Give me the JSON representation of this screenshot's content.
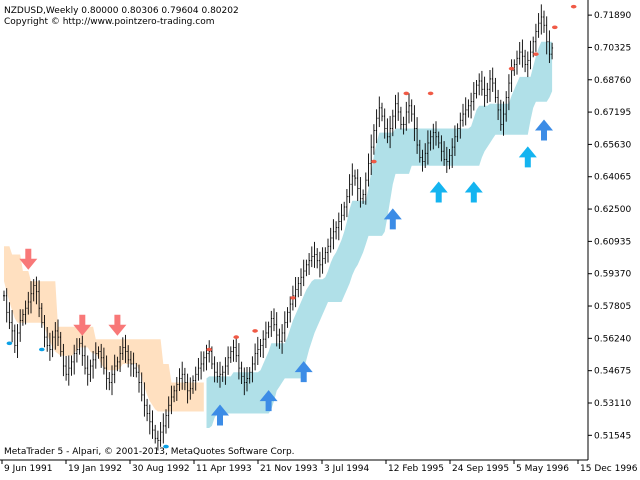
{
  "window": {
    "symbol_line": "NZDUSD,Weekly  0.80000 0.80306 0.79604 0.80202",
    "copyright": "Copyright © http://www.pointzero-trading.com",
    "footer": "MetaTrader 5 - Alpari, © 2001-2013, MetaQuotes Software Corp."
  },
  "colors": {
    "candle": "#000000",
    "bear_band": "#FFE0C0",
    "bull_band": "#B0E0E8",
    "down_arrow": "#F87878",
    "up_arrow_dark": "#3C8CE6",
    "up_arrow_light": "#14B4F0",
    "dot_red": "#F05A46",
    "dot_blue": "#0AA0E6",
    "axis": "#000000"
  },
  "chart_data": {
    "type": "line",
    "title": "",
    "xlabel": "",
    "ylabel": "",
    "ylim": [
      0.5035,
      0.7238
    ],
    "y_ticks": [
      "0.71890",
      "0.70325",
      "0.68760",
      "0.67195",
      "0.65630",
      "0.64065",
      "0.62500",
      "0.60935",
      "0.59370",
      "0.57805",
      "0.56240",
      "0.54675",
      "0.53110",
      "0.51545"
    ],
    "x_ticks": [
      "9 Jun 1991",
      "19 Jan 1992",
      "30 Aug 1992",
      "11 Apr 1993",
      "21 Nov 1993",
      "3 Jul 1994",
      "12 Feb 1995",
      "24 Sep 1995",
      "5 May 1996",
      "15 Dec 1996"
    ],
    "series": [
      {
        "values": [
          0.583,
          0.575,
          0.57,
          0.566,
          0.559,
          0.565,
          0.571,
          0.574,
          0.577,
          0.58,
          0.584,
          0.588,
          0.585,
          0.577,
          0.57,
          0.563,
          0.559,
          0.557,
          0.563,
          0.566,
          0.563,
          0.556,
          0.549,
          0.545,
          0.548,
          0.551,
          0.555,
          0.557,
          0.56,
          0.554,
          0.548,
          0.545,
          0.549,
          0.552,
          0.555,
          0.556,
          0.553,
          0.548,
          0.543,
          0.541,
          0.545,
          0.549,
          0.551,
          0.555,
          0.558,
          0.556,
          0.552,
          0.55,
          0.548,
          0.546,
          0.541,
          0.535,
          0.53,
          0.526,
          0.522,
          0.518,
          0.514,
          0.513,
          0.517,
          0.52,
          0.525,
          0.53,
          0.534,
          0.537,
          0.54,
          0.543,
          0.545,
          0.541,
          0.537,
          0.538,
          0.542,
          0.545,
          0.548,
          0.55,
          0.553,
          0.555,
          0.556,
          0.55,
          0.546,
          0.544,
          0.545,
          0.546,
          0.549,
          0.553,
          0.556,
          0.558,
          0.554,
          0.548,
          0.544,
          0.541,
          0.543,
          0.546,
          0.55,
          0.555,
          0.557,
          0.559,
          0.562,
          0.565,
          0.568,
          0.572,
          0.569,
          0.564,
          0.561,
          0.565,
          0.57,
          0.575,
          0.579,
          0.583,
          0.586,
          0.589,
          0.592,
          0.595,
          0.598,
          0.6,
          0.602,
          0.603,
          0.6,
          0.598,
          0.601,
          0.604,
          0.607,
          0.611,
          0.614,
          0.616,
          0.619,
          0.622,
          0.626,
          0.631,
          0.637,
          0.641,
          0.64,
          0.635,
          0.63,
          0.632,
          0.639,
          0.647,
          0.655,
          0.663,
          0.669,
          0.674,
          0.67,
          0.664,
          0.66,
          0.664,
          0.67,
          0.676,
          0.672,
          0.666,
          0.666,
          0.672,
          0.675,
          0.671,
          0.664,
          0.656,
          0.65,
          0.648,
          0.652,
          0.657,
          0.66,
          0.662,
          0.66,
          0.657,
          0.653,
          0.649,
          0.648,
          0.651,
          0.655,
          0.66,
          0.664,
          0.668,
          0.671,
          0.673,
          0.675,
          0.677,
          0.681,
          0.685,
          0.687,
          0.683,
          0.68,
          0.683,
          0.688,
          0.686,
          0.679,
          0.673,
          0.666,
          0.671,
          0.679,
          0.686,
          0.692,
          0.695,
          0.698,
          0.701,
          0.699,
          0.695,
          0.697,
          0.701,
          0.706,
          0.711,
          0.715,
          0.718,
          0.714,
          0.706,
          0.7,
          0.703
        ]
      }
    ],
    "bands": {
      "bearish": {
        "start": 0,
        "end": 74,
        "top": [
          0.607,
          0.607,
          0.607,
          0.603,
          0.603,
          0.603,
          0.603,
          0.595,
          0.595,
          0.595,
          0.59,
          0.59,
          0.59,
          0.59,
          0.59,
          0.59,
          0.59,
          0.59,
          0.59,
          0.59,
          0.568,
          0.568,
          0.568,
          0.568,
          0.568,
          0.568,
          0.568,
          0.568,
          0.568,
          0.568,
          0.568,
          0.568,
          0.568,
          0.568,
          0.562,
          0.562,
          0.562,
          0.562,
          0.562,
          0.562,
          0.562,
          0.562,
          0.562,
          0.562,
          0.562,
          0.562,
          0.562,
          0.562,
          0.562,
          0.562,
          0.562,
          0.562,
          0.562,
          0.562,
          0.562,
          0.562,
          0.562,
          0.562,
          0.562,
          0.55,
          0.55,
          0.55,
          0.541,
          0.541,
          0.541,
          0.541,
          0.541,
          0.541,
          0.541,
          0.541,
          0.541,
          0.541,
          0.541,
          0.541,
          0.541
        ],
        "bottom": [
          0.59,
          0.585,
          0.58,
          0.576,
          0.572,
          0.57,
          0.57,
          0.57,
          0.57,
          0.57,
          0.57,
          0.57,
          0.57,
          0.57,
          0.57,
          0.568,
          0.564,
          0.561,
          0.558,
          0.556,
          0.555,
          0.554,
          0.554,
          0.554,
          0.554,
          0.554,
          0.555,
          0.557,
          0.558,
          0.558,
          0.558,
          0.558,
          0.556,
          0.555,
          0.555,
          0.553,
          0.55,
          0.548,
          0.547,
          0.547,
          0.547,
          0.547,
          0.547,
          0.548,
          0.55,
          0.55,
          0.55,
          0.55,
          0.55,
          0.55,
          0.547,
          0.543,
          0.539,
          0.535,
          0.532,
          0.53,
          0.528,
          0.527,
          0.527,
          0.527,
          0.527,
          0.527,
          0.527,
          0.527,
          0.527,
          0.527,
          0.527,
          0.527,
          0.527,
          0.527,
          0.527,
          0.527,
          0.527,
          0.527,
          0.527
        ]
      },
      "bullish": {
        "start": 75,
        "end": 204
      }
    },
    "down_arrows": [
      {
        "i": 9,
        "y": 0.6
      },
      {
        "i": 29,
        "y": 0.568
      },
      {
        "i": 42,
        "y": 0.568
      }
    ],
    "up_arrows": [
      {
        "i": 80,
        "y": 0.526,
        "tone": "dark"
      },
      {
        "i": 98,
        "y": 0.533,
        "tone": "dark"
      },
      {
        "i": 111,
        "y": 0.547,
        "tone": "dark"
      },
      {
        "i": 144,
        "y": 0.621,
        "tone": "dark"
      },
      {
        "i": 161,
        "y": 0.634,
        "tone": "light"
      },
      {
        "i": 174,
        "y": 0.634,
        "tone": "light"
      },
      {
        "i": 194,
        "y": 0.651,
        "tone": "light"
      },
      {
        "i": 200,
        "y": 0.664,
        "tone": "dark"
      }
    ],
    "red_dots": [
      {
        "i": 76,
        "y": 0.557
      },
      {
        "i": 86,
        "y": 0.563
      },
      {
        "i": 93,
        "y": 0.566
      },
      {
        "i": 107,
        "y": 0.582
      },
      {
        "i": 137,
        "y": 0.648
      },
      {
        "i": 149,
        "y": 0.681
      },
      {
        "i": 158,
        "y": 0.681
      },
      {
        "i": 188,
        "y": 0.693
      },
      {
        "i": 197,
        "y": 0.7
      },
      {
        "i": 204,
        "y": 0.713
      },
      {
        "i": 211,
        "y": 0.723
      }
    ],
    "blue_dots": [
      {
        "i": 2,
        "y": 0.56
      },
      {
        "i": 14,
        "y": 0.557
      },
      {
        "i": 60,
        "y": 0.51
      }
    ]
  }
}
